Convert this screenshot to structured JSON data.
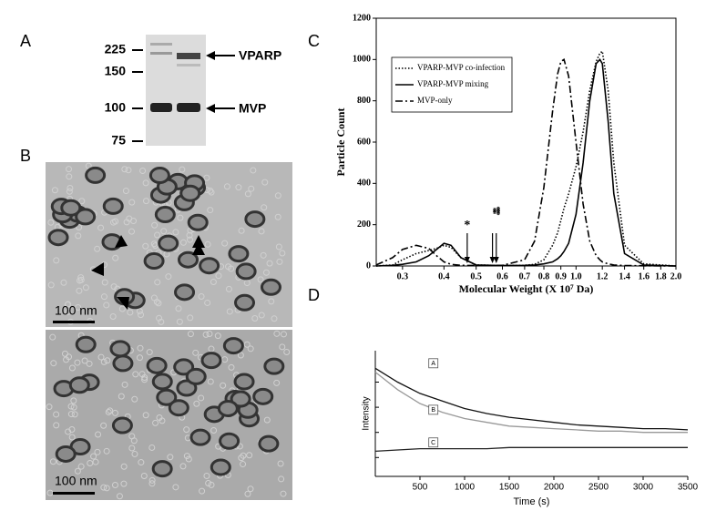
{
  "panels": {
    "a": "A",
    "b": "B",
    "c": "C",
    "d": "D"
  },
  "gel": {
    "markers": [
      "225",
      "150",
      "100",
      "75"
    ],
    "bands": [
      "VPARP",
      "MVP"
    ]
  },
  "micrograph": {
    "scale_bars": [
      "100 nm",
      "100 nm"
    ]
  },
  "chart_data": [
    {
      "type": "line",
      "x_label": "Molecular Weight (X 10⁷ Da)",
      "y_label": "Particle Count",
      "x": [
        0.25,
        0.28,
        0.3,
        0.33,
        0.36,
        0.38,
        0.4,
        0.42,
        0.45,
        0.5,
        0.6,
        0.7,
        0.75,
        0.8,
        0.85,
        0.88,
        0.9,
        0.92,
        0.95,
        1.0,
        1.05,
        1.1,
        1.15,
        1.18,
        1.2,
        1.25,
        1.3,
        1.4,
        1.6,
        2.0
      ],
      "xlim": [
        0.25,
        2.0
      ],
      "xscale": "log",
      "xticks": [
        0.3,
        0.4,
        0.5,
        0.6,
        0.7,
        0.8,
        0.9,
        {
          "value": 1,
          "label": "1.0"
        },
        1.2,
        1.4,
        1.6,
        1.8,
        {
          "value": 2,
          "label": "2.0"
        }
      ],
      "ylim": [
        0,
        1200
      ],
      "yticks": [
        0,
        200,
        400,
        600,
        800,
        1000,
        1200
      ],
      "legend": "upper left",
      "series": [
        {
          "name": "VPARP-MVP co-infection",
          "color": "#000000",
          "dash": "dotted",
          "values": [
            0,
            5,
            30,
            60,
            75,
            85,
            100,
            90,
            40,
            5,
            2,
            3,
            8,
            30,
            100,
            160,
            220,
            280,
            350,
            480,
            650,
            850,
            990,
            1030,
            1040,
            850,
            500,
            100,
            10,
            0
          ]
        },
        {
          "name": "VPARP-MVP mixing",
          "color": "#000000",
          "dash": "solid",
          "values": [
            0,
            3,
            8,
            20,
            50,
            80,
            110,
            100,
            40,
            5,
            2,
            3,
            5,
            10,
            20,
            35,
            50,
            70,
            110,
            250,
            500,
            800,
            980,
            1000,
            980,
            700,
            350,
            60,
            5,
            0
          ]
        },
        {
          "name": "MVP-only",
          "color": "#000000",
          "dash": "dashdot",
          "values": [
            5,
            40,
            80,
            100,
            85,
            50,
            20,
            8,
            3,
            2,
            3,
            30,
            120,
            380,
            750,
            930,
            990,
            1000,
            920,
            600,
            300,
            120,
            50,
            30,
            20,
            10,
            5,
            2,
            1,
            0
          ]
        }
      ],
      "annotations": [
        {
          "text": "*",
          "x": 0.47
        },
        {
          "text": "**",
          "x": 0.56
        },
        {
          "text": "***",
          "x": 0.575
        }
      ]
    },
    {
      "type": "line",
      "x_label": "Time (s)",
      "y_label": "Intensity",
      "x": [
        0,
        250,
        500,
        750,
        1000,
        1250,
        1500,
        1750,
        2000,
        2250,
        2500,
        2750,
        3000,
        3250,
        3500
      ],
      "xlim": [
        0,
        3500
      ],
      "xticks": [
        500,
        1000,
        1500,
        2000,
        2500,
        3000,
        3500
      ],
      "ylim": [
        0,
        100
      ],
      "series": [
        {
          "color": "#111111",
          "dash": "solid",
          "values": [
            86,
            75,
            66,
            60,
            54,
            50,
            47,
            45,
            43,
            41,
            40,
            39,
            38,
            38,
            37
          ]
        },
        {
          "color": "#999999",
          "dash": "solid",
          "values": [
            83,
            69,
            58,
            51,
            46,
            43,
            40,
            39,
            38,
            37,
            36,
            36,
            35,
            35,
            35
          ]
        },
        {
          "color": "#222222",
          "dash": "solid",
          "values": [
            20,
            21,
            22,
            22,
            22,
            22,
            23,
            23,
            23,
            23,
            23,
            23,
            23,
            23,
            23
          ]
        }
      ],
      "annotations": [
        {
          "text": "A",
          "x": 650,
          "y": 90
        },
        {
          "text": "B",
          "x": 650,
          "y": 53
        },
        {
          "text": "C",
          "x": 650,
          "y": 27
        }
      ]
    }
  ]
}
